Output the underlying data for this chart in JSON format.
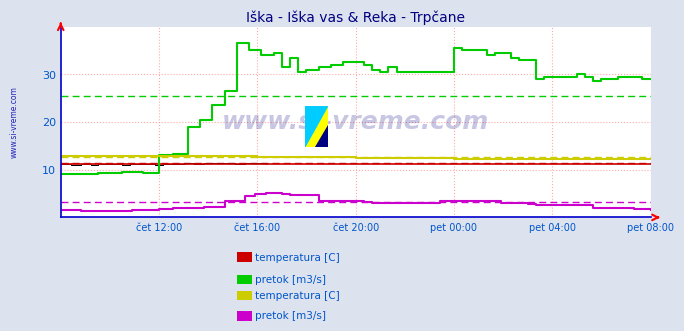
{
  "title": "Iška - Iška vas & Reka - Trpčane",
  "title_color": "#000080",
  "bg_color": "#dde3ee",
  "plot_bg_color": "#ffffff",
  "grid_color": "#ffaaaa",
  "axis_color": "#0000cc",
  "xlabel_color": "#0055cc",
  "ylabel_color": "#0055cc",
  "xlim": [
    0,
    288
  ],
  "ylim": [
    0,
    40
  ],
  "yticks": [
    10,
    20,
    30
  ],
  "xtick_labels": [
    "čet 12:00",
    "čet 16:00",
    "čet 20:00",
    "pet 00:00",
    "pet 04:00",
    "pet 08:00"
  ],
  "xtick_positions": [
    48,
    96,
    144,
    192,
    240,
    288
  ],
  "watermark": "www.si-vreme.com",
  "side_label": "www.si-vreme.com",
  "legend1_colors": [
    "#cc0000",
    "#00cc00"
  ],
  "legend1_labels": [
    "temperatura [C]",
    "pretok [m3/s]"
  ],
  "legend2_colors": [
    "#cccc00",
    "#cc00cc"
  ],
  "legend2_labels": [
    "temperatura [C]",
    "pretok [m3/s]"
  ],
  "avg_lines": {
    "green_avg": 25.5,
    "red_avg": 11.5,
    "yellow_avg": 12.7,
    "magenta_avg": 3.2
  },
  "black_step_data": [
    [
      0,
      11.2
    ],
    [
      5,
      11.0
    ],
    [
      10,
      11.1
    ],
    [
      15,
      11.0
    ],
    [
      18,
      11.3
    ],
    [
      22,
      11.1
    ],
    [
      26,
      11.2
    ],
    [
      30,
      11.0
    ],
    [
      34,
      11.2
    ],
    [
      38,
      11.3
    ],
    [
      42,
      11.2
    ],
    [
      46,
      11.0
    ],
    [
      50,
      11.1
    ],
    [
      55,
      11.3
    ],
    [
      60,
      11.4
    ],
    [
      65,
      11.3
    ],
    [
      70,
      11.5
    ],
    [
      75,
      11.4
    ],
    [
      80,
      11.5
    ],
    [
      85,
      11.3
    ],
    [
      90,
      11.4
    ],
    [
      95,
      11.4
    ],
    [
      100,
      11.3
    ]
  ],
  "red_step_data": [
    [
      0,
      11.2
    ],
    [
      48,
      11.2
    ],
    [
      96,
      11.2
    ],
    [
      144,
      11.3
    ],
    [
      192,
      11.2
    ],
    [
      240,
      11.2
    ],
    [
      288,
      11.1
    ]
  ],
  "green_step_data": [
    [
      0,
      9.2
    ],
    [
      10,
      9.1
    ],
    [
      18,
      9.3
    ],
    [
      30,
      9.5
    ],
    [
      40,
      9.3
    ],
    [
      48,
      13.0
    ],
    [
      55,
      13.2
    ],
    [
      62,
      19.0
    ],
    [
      68,
      20.5
    ],
    [
      74,
      23.5
    ],
    [
      80,
      26.5
    ],
    [
      86,
      36.5
    ],
    [
      92,
      35.0
    ],
    [
      98,
      34.0
    ],
    [
      104,
      34.5
    ],
    [
      108,
      31.5
    ],
    [
      112,
      33.5
    ],
    [
      116,
      30.5
    ],
    [
      120,
      31.0
    ],
    [
      126,
      31.5
    ],
    [
      132,
      32.0
    ],
    [
      138,
      32.5
    ],
    [
      144,
      32.5
    ],
    [
      148,
      32.0
    ],
    [
      152,
      31.0
    ],
    [
      156,
      30.5
    ],
    [
      160,
      31.5
    ],
    [
      164,
      30.5
    ],
    [
      168,
      30.5
    ],
    [
      172,
      30.5
    ],
    [
      176,
      30.5
    ],
    [
      180,
      30.5
    ],
    [
      184,
      30.5
    ],
    [
      188,
      30.5
    ],
    [
      192,
      35.5
    ],
    [
      196,
      35.0
    ],
    [
      200,
      35.0
    ],
    [
      204,
      35.0
    ],
    [
      208,
      34.0
    ],
    [
      212,
      34.5
    ],
    [
      216,
      34.5
    ],
    [
      220,
      33.5
    ],
    [
      224,
      33.0
    ],
    [
      228,
      33.0
    ],
    [
      232,
      29.0
    ],
    [
      236,
      29.5
    ],
    [
      240,
      29.5
    ],
    [
      244,
      29.5
    ],
    [
      248,
      29.5
    ],
    [
      252,
      30.0
    ],
    [
      256,
      29.5
    ],
    [
      260,
      28.5
    ],
    [
      264,
      29.0
    ],
    [
      268,
      29.0
    ],
    [
      272,
      29.5
    ],
    [
      276,
      29.5
    ],
    [
      280,
      29.5
    ],
    [
      284,
      29.0
    ],
    [
      288,
      29.0
    ]
  ],
  "yellow_step_data": [
    [
      0,
      12.8
    ],
    [
      48,
      12.8
    ],
    [
      96,
      12.7
    ],
    [
      144,
      12.5
    ],
    [
      192,
      12.3
    ],
    [
      240,
      12.3
    ],
    [
      288,
      12.2
    ]
  ],
  "magenta_step_data": [
    [
      0,
      1.5
    ],
    [
      10,
      1.4
    ],
    [
      20,
      1.3
    ],
    [
      35,
      1.5
    ],
    [
      48,
      1.8
    ],
    [
      55,
      2.0
    ],
    [
      70,
      2.2
    ],
    [
      80,
      3.5
    ],
    [
      90,
      4.5
    ],
    [
      95,
      5.0
    ],
    [
      100,
      5.2
    ],
    [
      108,
      5.0
    ],
    [
      112,
      4.8
    ],
    [
      118,
      4.8
    ],
    [
      126,
      3.5
    ],
    [
      130,
      3.5
    ],
    [
      135,
      3.5
    ],
    [
      140,
      3.5
    ],
    [
      144,
      3.5
    ],
    [
      148,
      3.2
    ],
    [
      152,
      3.0
    ],
    [
      156,
      3.0
    ],
    [
      160,
      3.0
    ],
    [
      168,
      3.0
    ],
    [
      172,
      3.0
    ],
    [
      180,
      3.0
    ],
    [
      185,
      3.5
    ],
    [
      190,
      3.5
    ],
    [
      192,
      3.5
    ],
    [
      196,
      3.5
    ],
    [
      200,
      3.5
    ],
    [
      205,
      3.5
    ],
    [
      210,
      3.5
    ],
    [
      215,
      3.0
    ],
    [
      220,
      3.0
    ],
    [
      225,
      3.0
    ],
    [
      228,
      2.8
    ],
    [
      232,
      2.5
    ],
    [
      236,
      2.5
    ],
    [
      240,
      2.5
    ],
    [
      244,
      2.5
    ],
    [
      248,
      2.5
    ],
    [
      252,
      2.5
    ],
    [
      256,
      2.5
    ],
    [
      260,
      2.0
    ],
    [
      264,
      2.0
    ],
    [
      268,
      2.0
    ],
    [
      272,
      2.0
    ],
    [
      276,
      2.0
    ],
    [
      280,
      1.8
    ],
    [
      284,
      1.8
    ],
    [
      288,
      1.5
    ]
  ]
}
